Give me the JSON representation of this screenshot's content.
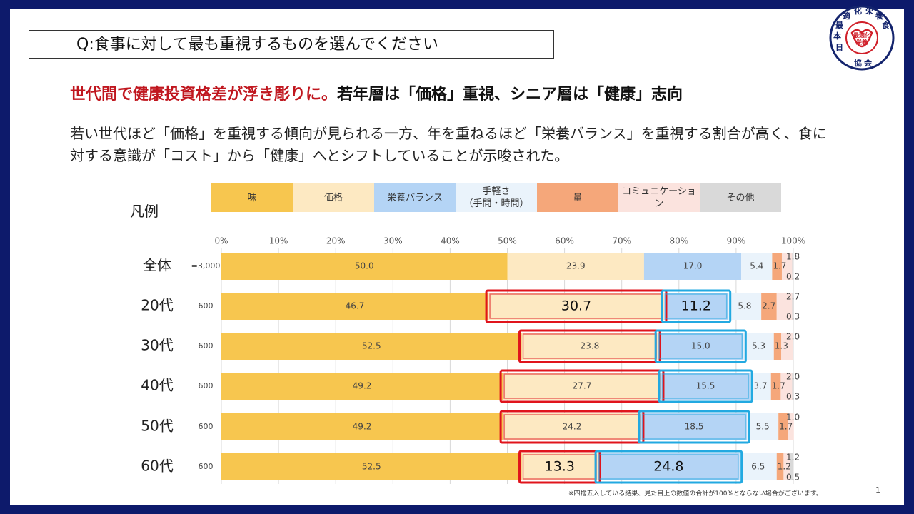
{
  "question": "Q:食事に対して最も重視するものを選んでください",
  "headline": {
    "red": "世代間で健康投資格差が浮き彫りに。",
    "black": "若年層は「価格」重視、シニア層は「健康」志向"
  },
  "body": "若い世代ほど「価格」を重視する傾向が見られる一方、年を重ねるほど「栄養バランス」を重視する割合が高く、食に対する意識が「コスト」から「健康」へとシフトしていることが示唆された。",
  "legend_label": "凡例",
  "legend": [
    {
      "label": "味",
      "color": "#f7c64f"
    },
    {
      "label": "価格",
      "color": "#fde9c2"
    },
    {
      "label": "栄養バランス",
      "color": "#b4d4f5"
    },
    {
      "label": "手軽さ\n（手間・時間）",
      "color": "#eaf3fb"
    },
    {
      "label": "量",
      "color": "#f5a77a"
    },
    {
      "label": "コミュニケーション",
      "color": "#fbe3de"
    },
    {
      "label": "その他",
      "color": "#d9d9d9"
    }
  ],
  "stamp": {
    "outer": "日本最適化栄養食協会",
    "inner": "最適化 栄養"
  },
  "footnote": "※四捨五入している結果、見た目上の数値の合計が100%とならない場合がございます。",
  "page_number": "1",
  "chart_data": {
    "type": "bar",
    "orientation": "horizontal-stacked-percent",
    "x_ticks": [
      "0%",
      "10%",
      "20%",
      "30%",
      "40%",
      "50%",
      "60%",
      "70%",
      "80%",
      "90%",
      "100%"
    ],
    "xlim": [
      0,
      100
    ],
    "grid": true,
    "categories": [
      "全体",
      "20代",
      "30代",
      "40代",
      "50代",
      "60代"
    ],
    "n_labels": [
      "=3,000",
      "600",
      "600",
      "600",
      "600",
      "600"
    ],
    "series": [
      {
        "name": "味",
        "values": [
          50.0,
          46.7,
          52.5,
          49.2,
          49.2,
          52.5
        ],
        "labels": [
          "50.0",
          "46.7",
          "52.5",
          "49.2",
          "49.2",
          "52.5"
        ]
      },
      {
        "name": "価格",
        "values": [
          23.9,
          30.7,
          23.8,
          27.7,
          24.2,
          13.3
        ],
        "labels": [
          "23.9",
          "30.7",
          "23.8",
          "27.7",
          "24.2",
          "13.3"
        ]
      },
      {
        "name": "栄養バランス",
        "values": [
          17.0,
          11.2,
          15.0,
          15.5,
          18.5,
          24.8
        ],
        "labels": [
          "17.0",
          "11.2",
          "15.0",
          "15.5",
          "18.5",
          "24.8"
        ]
      },
      {
        "name": "手軽さ（手間・時間）",
        "values": [
          5.4,
          5.8,
          5.3,
          3.7,
          5.5,
          6.5
        ],
        "labels": [
          "5.4",
          "5.8",
          "5.3",
          "3.7",
          "5.5",
          "6.5"
        ]
      },
      {
        "name": "量",
        "values": [
          1.7,
          2.7,
          1.3,
          1.7,
          1.7,
          1.2
        ],
        "labels": [
          "1.7",
          "2.7",
          "1.3",
          "1.7",
          "1.7",
          "1.2"
        ]
      },
      {
        "name": "コミュニケーション",
        "values": [
          1.8,
          2.7,
          2.0,
          2.0,
          1.0,
          1.2
        ],
        "labels": [
          "1.8",
          "2.7",
          "2.0",
          "2.0",
          "1.0",
          "1.2"
        ]
      },
      {
        "name": "その他",
        "values": [
          0.2,
          0.3,
          0.0,
          0.3,
          0.0,
          0.5
        ],
        "labels": [
          "0.2",
          "0.3",
          "",
          "0.3",
          "",
          "0.5"
        ]
      }
    ],
    "highlights": [
      {
        "row": 1,
        "series": 1,
        "style": "large"
      },
      {
        "row": 1,
        "series": 2,
        "style": "large"
      },
      {
        "row": 2,
        "series": 1,
        "style": "normal"
      },
      {
        "row": 2,
        "series": 2,
        "style": "normal"
      },
      {
        "row": 3,
        "series": 1,
        "style": "normal"
      },
      {
        "row": 3,
        "series": 2,
        "style": "normal"
      },
      {
        "row": 4,
        "series": 1,
        "style": "normal"
      },
      {
        "row": 4,
        "series": 2,
        "style": "normal"
      },
      {
        "row": 5,
        "series": 1,
        "style": "large"
      },
      {
        "row": 5,
        "series": 2,
        "style": "large"
      }
    ],
    "highlight_colors": {
      "価格": "#e0141c",
      "栄養バランス": "#22a9e1"
    }
  }
}
